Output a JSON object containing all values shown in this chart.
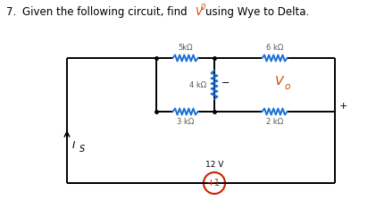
{
  "bg_color": "#ffffff",
  "circuit_color": "#000000",
  "resistor_color": "#1a6fd4",
  "source_color": "#cc2200",
  "R1_label": "5kΩ",
  "R2_label": "6 kΩ",
  "R3_label": "4 kΩ",
  "R4_label": "3 kΩ",
  "R5_label": "2 kΩ",
  "source_label": "12 V",
  "Is_label": "I",
  "Is_sub": "S",
  "Vo_label": "V",
  "Vo_sub": "o",
  "plus_sign": "+",
  "minus_sign": "−",
  "title_prefix": "7.    Given the following circuit, find",
  "title_V": "V",
  "title_sub": "0",
  "title_suffix": "using Wye to Delta."
}
